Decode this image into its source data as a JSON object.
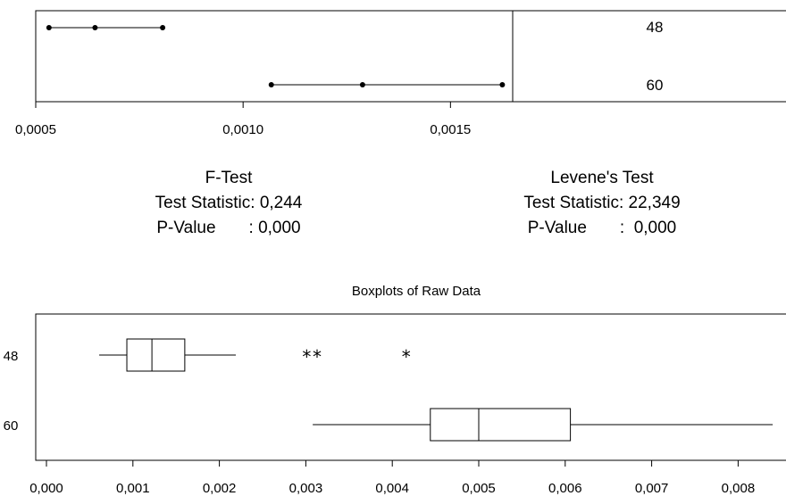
{
  "chart_data": [
    {
      "type": "interval",
      "categories": [
        "48",
        "60"
      ],
      "intervals": [
        {
          "group": "48",
          "lower": 0.000532,
          "estimate": 0.000643,
          "upper": 0.000806
        },
        {
          "group": "60",
          "lower": 0.001068,
          "estimate": 0.001288,
          "upper": 0.001625
        }
      ],
      "xlim": [
        0.0005,
        0.00165
      ],
      "xticks": [
        "0,0005",
        "0,0010",
        "0,0015"
      ],
      "xtick_values": [
        0.0005,
        0.001,
        0.0015
      ]
    },
    {
      "type": "boxplot",
      "title": "Boxplots of Raw Data",
      "categories": [
        "48",
        "60"
      ],
      "boxes": [
        {
          "group": "48",
          "min": 0.00061,
          "q1": 0.00093,
          "median": 0.00122,
          "q3": 0.0016,
          "max": 0.00219,
          "outliers": [
            0.00301,
            0.00313,
            0.00416
          ]
        },
        {
          "group": "60",
          "min": 0.00308,
          "q1": 0.00444,
          "median": 0.005,
          "q3": 0.00606,
          "max": 0.0084,
          "outliers": []
        }
      ],
      "xlim": [
        0.0,
        0.0086
      ],
      "xticks": [
        "0,000",
        "0,001",
        "0,002",
        "0,003",
        "0,004",
        "0,005",
        "0,006",
        "0,007",
        "0,008"
      ],
      "xtick_values": [
        0,
        0.001,
        0.002,
        0.003,
        0.004,
        0.005,
        0.006,
        0.007,
        0.008
      ]
    }
  ],
  "tests": {
    "f_test": {
      "title": "F-Test",
      "statistic_line": "Test Statistic: 0,244",
      "pvalue_line": "P-Value       : 0,000"
    },
    "levene": {
      "title": "Levene's Test",
      "statistic_line": "Test Statistic: 22,349",
      "pvalue_line": "P-Value       :  0,000"
    }
  }
}
